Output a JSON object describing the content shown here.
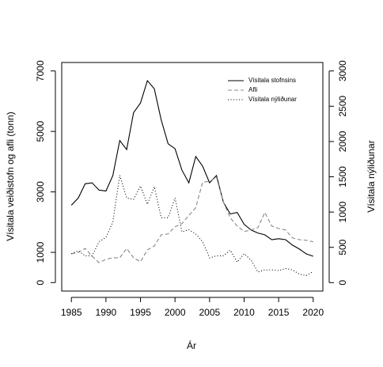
{
  "chart_data": {
    "type": "line",
    "x": [
      1985,
      1986,
      1987,
      1988,
      1989,
      1990,
      1991,
      1992,
      1993,
      1994,
      1995,
      1996,
      1997,
      1998,
      1999,
      2000,
      2001,
      2002,
      2003,
      2004,
      2005,
      2006,
      2007,
      2008,
      2009,
      2010,
      2011,
      2012,
      2013,
      2014,
      2015,
      2016,
      2017,
      2018,
      2019,
      2020
    ],
    "series": [
      {
        "name": "Vísitala stofnsins",
        "color": "#000000",
        "dash": "solid",
        "values": [
          2560,
          2800,
          3270,
          3300,
          3060,
          3030,
          3540,
          4700,
          4400,
          5620,
          5940,
          6680,
          6410,
          5380,
          4590,
          4430,
          3720,
          3300,
          4170,
          3850,
          3300,
          3540,
          2660,
          2270,
          2320,
          1930,
          1740,
          1640,
          1580,
          1420,
          1450,
          1420,
          1240,
          1110,
          950,
          870
        ]
      },
      {
        "name": "Afli",
        "color": "#888888",
        "dash": "dashed",
        "values": [
          950,
          1000,
          1130,
          870,
          660,
          770,
          820,
          820,
          1130,
          820,
          690,
          1080,
          1210,
          1580,
          1610,
          1850,
          1950,
          2220,
          2480,
          3320,
          3350,
          3480,
          2660,
          2140,
          1870,
          1690,
          1740,
          1820,
          2320,
          1870,
          1790,
          1740,
          1480,
          1420,
          1400,
          1350
        ]
      },
      {
        "name": "Vísitala nýliðunar",
        "color": "#000000",
        "dash": "dotted",
        "axis": "y2",
        "values": [
          410,
          450,
          380,
          380,
          580,
          640,
          860,
          1520,
          1200,
          1180,
          1370,
          1110,
          1360,
          920,
          920,
          1200,
          720,
          750,
          690,
          580,
          350,
          380,
          380,
          460,
          290,
          410,
          320,
          150,
          180,
          180,
          170,
          200,
          180,
          120,
          100,
          160
        ]
      }
    ],
    "xlabel": "Ár",
    "ylabel": "Vísitala veiðistofn og afli (tonn)",
    "y2label": "Vísitala nýliðunar",
    "xlim": [
      1983.6,
      2021.4
    ],
    "xticks": [
      1985,
      1990,
      1995,
      2000,
      2005,
      2010,
      2015,
      2020
    ],
    "ylim": [
      -280,
      7280
    ],
    "yticks": [
      0,
      1000,
      3000,
      5000,
      7000
    ],
    "y2lim": [
      -120,
      3120
    ],
    "y2ticks": [
      0,
      500,
      1000,
      1500,
      2000,
      2500,
      3000
    ],
    "legend": "top-right"
  }
}
